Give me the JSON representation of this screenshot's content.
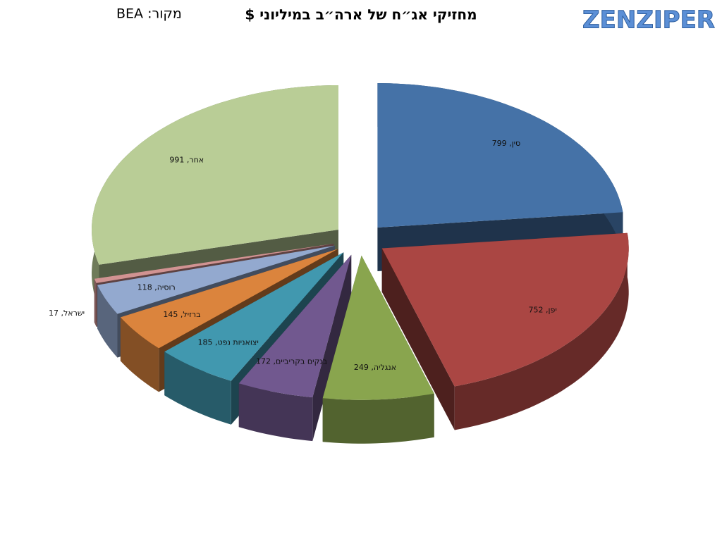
{
  "chart_data": {
    "type": "pie3d",
    "title": "מחזיקי אג״ח של ארה״ב במיליוני $",
    "source": "מקור: BEA",
    "logo": "ZENZIPER",
    "categories": [
      "סין",
      "יפן",
      "אנגליה",
      "בנקים בקריביים",
      "יצואניות נפט",
      "ברזיל",
      "רוסיה",
      "ישראל",
      "אחר"
    ],
    "values": [
      799,
      752,
      249,
      172,
      185,
      145,
      118,
      17,
      991
    ],
    "value_labels": [
      "סין, 799",
      "יפן, 752",
      "אנגליה, 249",
      "בנקים בקריביים, 172",
      "יצואניות נפט, 185",
      "ברזיל, 145",
      "רוסיה, 118",
      "ישראל, 17",
      "אחר, 991"
    ],
    "colors": [
      "#4572a7",
      "#aa4643",
      "#89a54e",
      "#71588f",
      "#4198af",
      "#db843d",
      "#93a9cf",
      "#d19392",
      "#b9cd96"
    ]
  }
}
